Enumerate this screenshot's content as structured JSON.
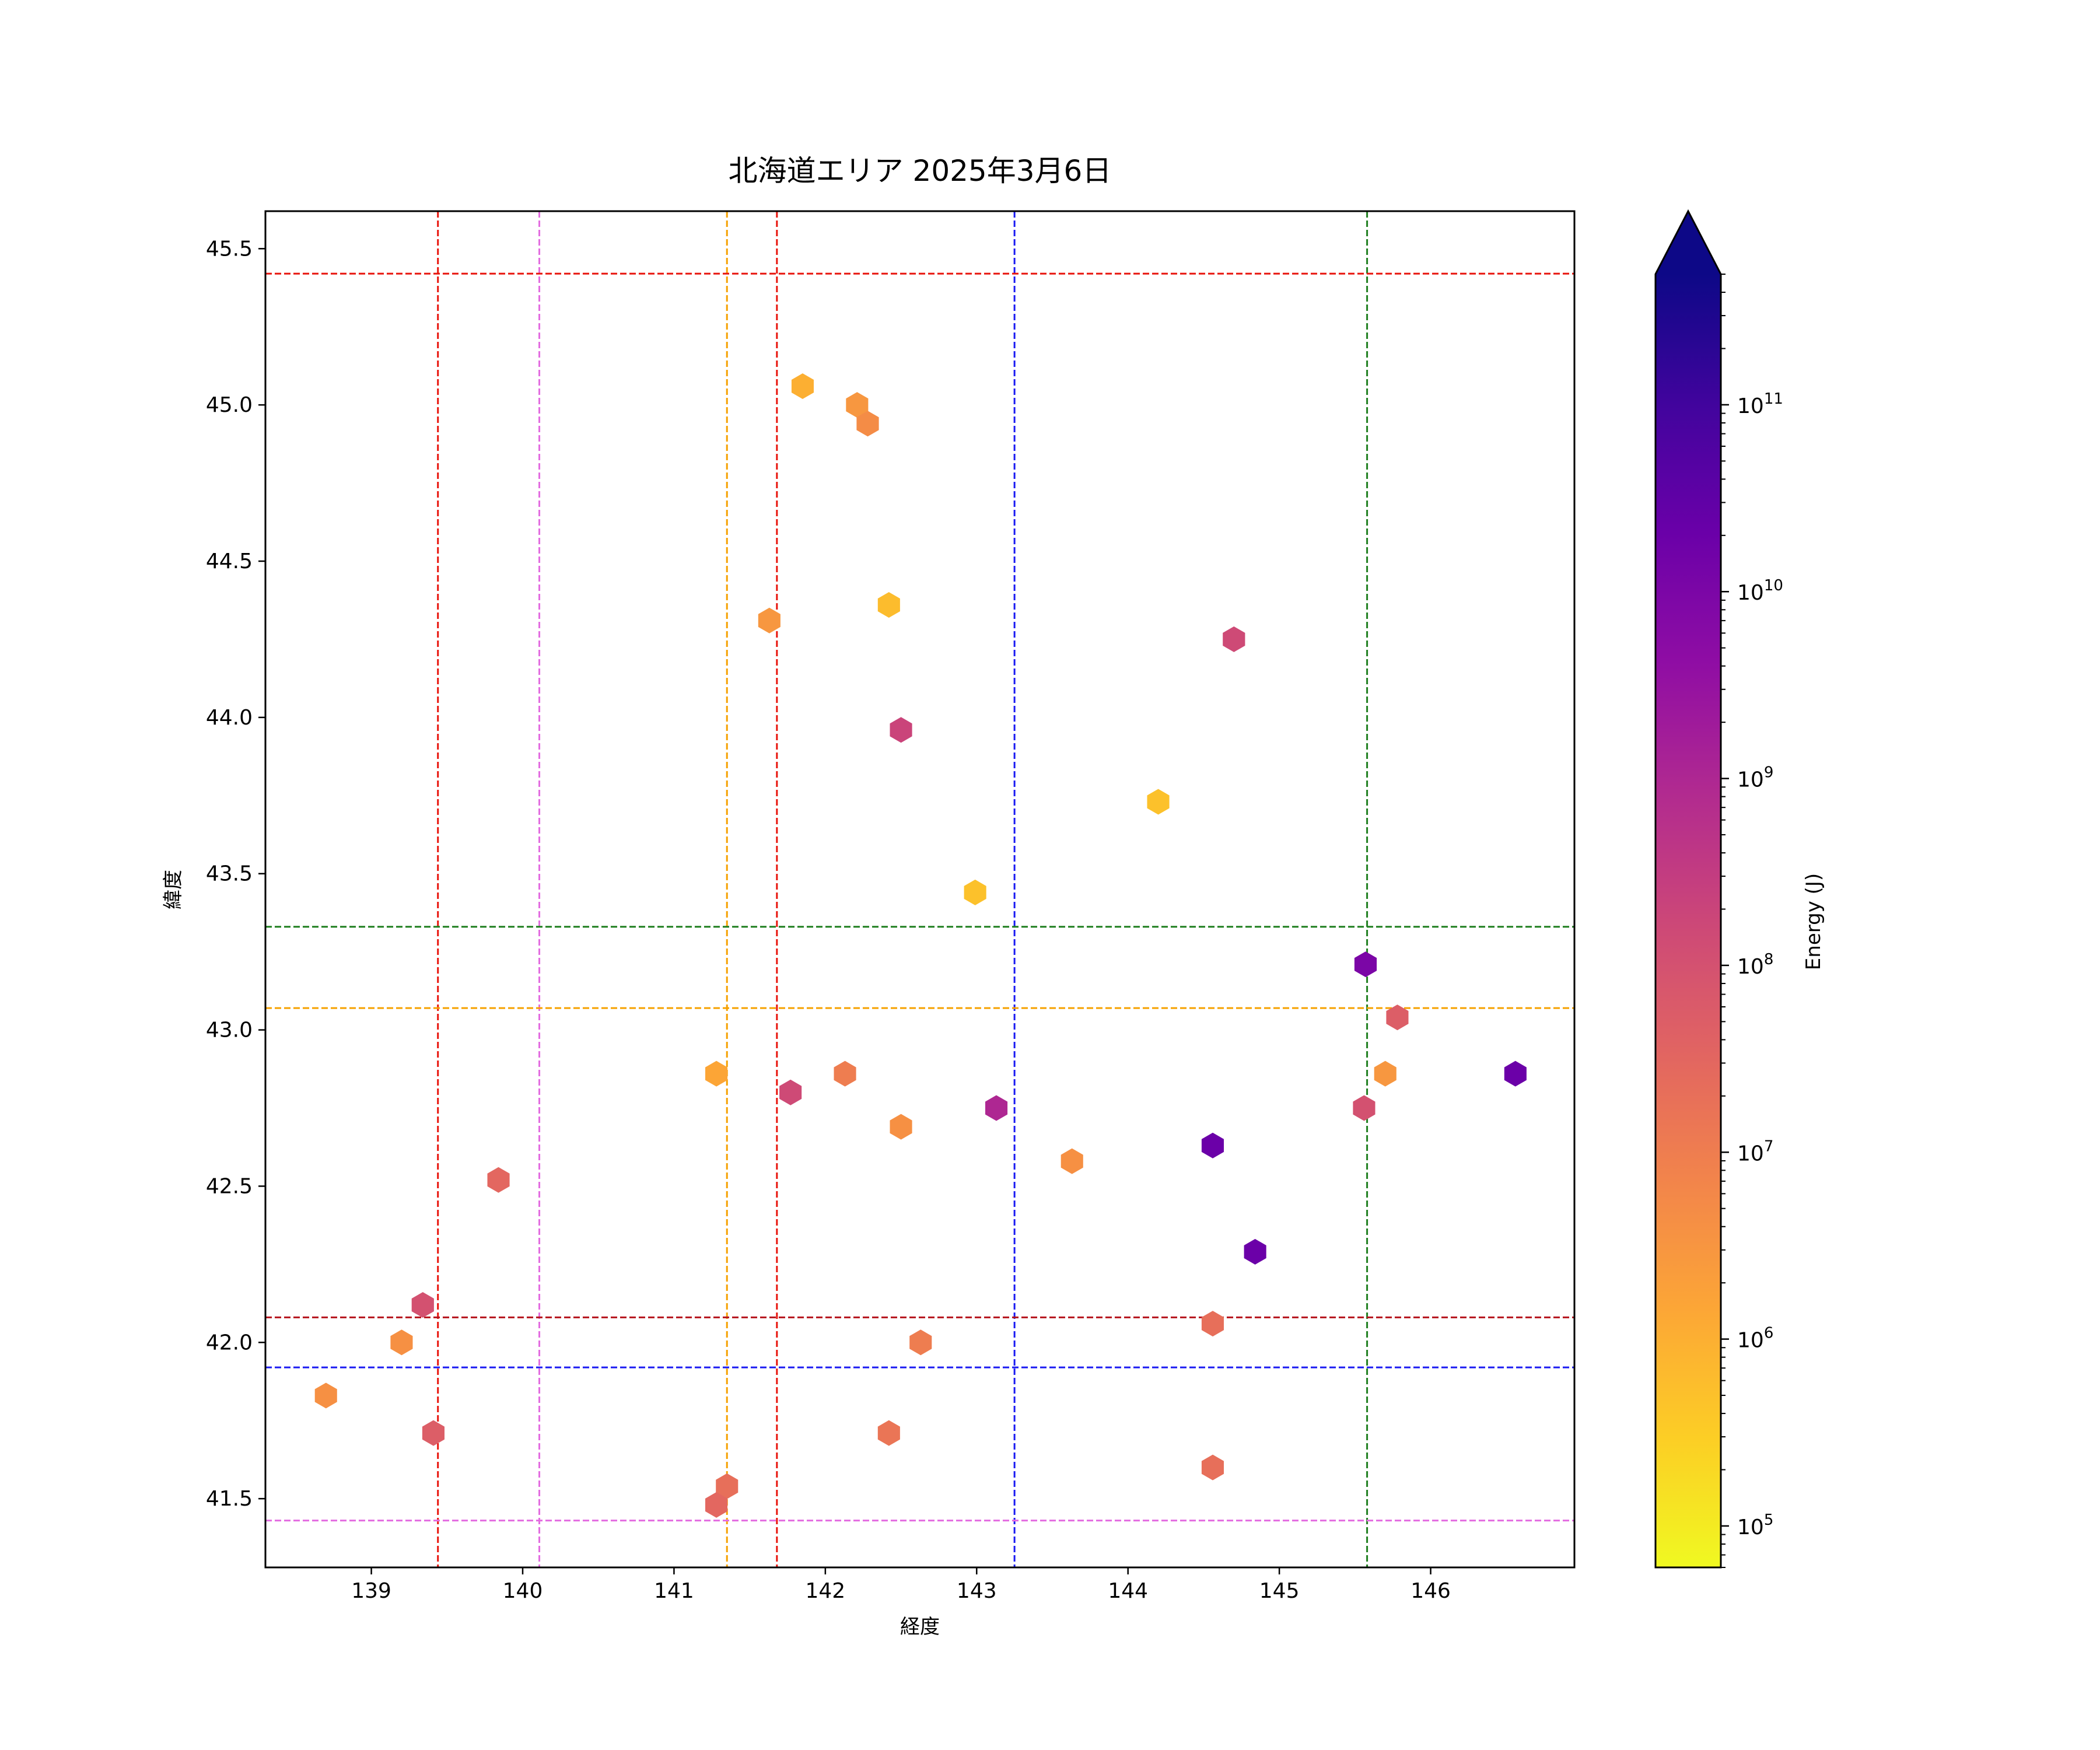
{
  "chart_data": {
    "type": "scatter",
    "marker": "hexagon",
    "title": "北海道エリア 2025年3月6日",
    "xlabel": "経度",
    "ylabel": "緯度",
    "xlim": [
      138.3,
      146.95
    ],
    "ylim": [
      41.28,
      45.62
    ],
    "xticks": [
      139,
      140,
      141,
      142,
      143,
      144,
      145,
      146
    ],
    "yticks": [
      41.5,
      42.0,
      42.5,
      43.0,
      43.5,
      44.0,
      44.5,
      45.0,
      45.5
    ],
    "grid": false,
    "colorbar": {
      "label": "Energy (J)",
      "scale": "log",
      "colormap": "plasma",
      "range": [
        60000,
        500000000000
      ],
      "extend": "max",
      "major_ticks": [
        5,
        6,
        7,
        8,
        9,
        10,
        11
      ],
      "major_labels": [
        "10",
        "10",
        "10",
        "10",
        "10",
        "10",
        "10"
      ],
      "major_exponents": [
        "5",
        "6",
        "7",
        "8",
        "9",
        "10",
        "11"
      ],
      "extend_color": "#0d0887"
    },
    "reference_lines": {
      "vertical": [
        {
          "x": 139.44,
          "color": "#e8140c"
        },
        {
          "x": 140.11,
          "color": "#e36ce0"
        },
        {
          "x": 141.35,
          "color": "#f6a100"
        },
        {
          "x": 141.68,
          "color": "#e8140c"
        },
        {
          "x": 143.25,
          "color": "#1a1af2"
        },
        {
          "x": 145.58,
          "color": "#1f7f1f"
        }
      ],
      "horizontal": [
        {
          "y": 45.42,
          "color": "#e8140c"
        },
        {
          "y": 43.33,
          "color": "#1f7f1f"
        },
        {
          "y": 43.07,
          "color": "#f6a100"
        },
        {
          "y": 42.08,
          "color": "#b5121b"
        },
        {
          "y": 41.92,
          "color": "#1a1af2"
        },
        {
          "y": 41.43,
          "color": "#e36ce0"
        }
      ]
    },
    "points": [
      {
        "lon": 141.85,
        "lat": 45.06,
        "energy": 1000000
      },
      {
        "lon": 142.21,
        "lat": 45.0,
        "energy": 3000000
      },
      {
        "lon": 142.28,
        "lat": 44.94,
        "energy": 5000000
      },
      {
        "lon": 141.63,
        "lat": 44.31,
        "energy": 3000000
      },
      {
        "lon": 142.42,
        "lat": 44.36,
        "energy": 600000
      },
      {
        "lon": 142.5,
        "lat": 43.96,
        "energy": 200000000
      },
      {
        "lon": 144.7,
        "lat": 44.25,
        "energy": 150000000
      },
      {
        "lon": 144.2,
        "lat": 43.73,
        "energy": 500000
      },
      {
        "lon": 142.99,
        "lat": 43.44,
        "energy": 500000
      },
      {
        "lon": 145.57,
        "lat": 43.21,
        "energy": 10000000000
      },
      {
        "lon": 145.78,
        "lat": 43.04,
        "energy": 50000000
      },
      {
        "lon": 141.28,
        "lat": 42.86,
        "energy": 1500000
      },
      {
        "lon": 141.77,
        "lat": 42.8,
        "energy": 150000000
      },
      {
        "lon": 142.13,
        "lat": 42.86,
        "energy": 10000000
      },
      {
        "lon": 142.5,
        "lat": 42.69,
        "energy": 4000000
      },
      {
        "lon": 143.13,
        "lat": 42.75,
        "energy": 1000000000
      },
      {
        "lon": 143.63,
        "lat": 42.58,
        "energy": 4000000
      },
      {
        "lon": 144.56,
        "lat": 42.63,
        "energy": 20000000000
      },
      {
        "lon": 145.56,
        "lat": 42.75,
        "energy": 100000000
      },
      {
        "lon": 145.7,
        "lat": 42.86,
        "energy": 3000000
      },
      {
        "lon": 146.56,
        "lat": 42.86,
        "energy": 20000000000
      },
      {
        "lon": 144.84,
        "lat": 42.29,
        "energy": 20000000000
      },
      {
        "lon": 139.84,
        "lat": 42.52,
        "energy": 30000000
      },
      {
        "lon": 139.34,
        "lat": 42.12,
        "energy": 100000000
      },
      {
        "lon": 139.2,
        "lat": 42.0,
        "energy": 4000000
      },
      {
        "lon": 138.7,
        "lat": 41.83,
        "energy": 4000000
      },
      {
        "lon": 139.41,
        "lat": 41.71,
        "energy": 50000000
      },
      {
        "lon": 142.63,
        "lat": 42.0,
        "energy": 10000000
      },
      {
        "lon": 144.56,
        "lat": 42.06,
        "energy": 20000000
      },
      {
        "lon": 142.42,
        "lat": 41.71,
        "energy": 15000000
      },
      {
        "lon": 144.56,
        "lat": 41.6,
        "energy": 20000000
      },
      {
        "lon": 141.35,
        "lat": 41.54,
        "energy": 20000000
      },
      {
        "lon": 141.28,
        "lat": 41.48,
        "energy": 30000000
      }
    ]
  }
}
